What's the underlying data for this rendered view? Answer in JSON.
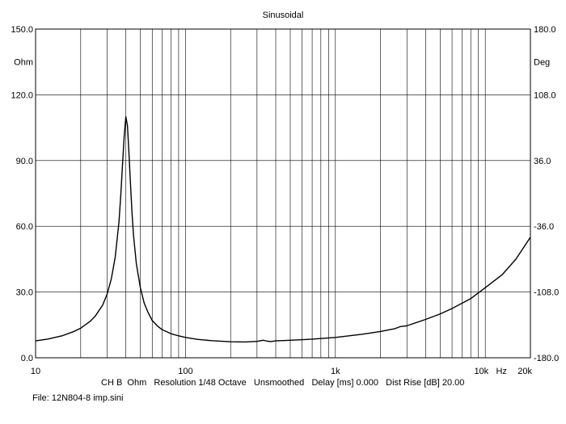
{
  "chart_data": {
    "type": "line",
    "title": "Sinusoidal",
    "x_scale": "log",
    "xlim": [
      10,
      20000
    ],
    "x_tick_labels": [
      "10",
      "100",
      "1k",
      "10k",
      "20k"
    ],
    "x_unit": "Hz",
    "y_left": {
      "unit": "Ohm",
      "ylim": [
        0,
        150
      ],
      "tick_labels": [
        "0.0",
        "30.0",
        "60.0",
        "90.0",
        "120.0",
        "150.0"
      ]
    },
    "y_right": {
      "unit": "Deg",
      "ylim": [
        -180,
        180
      ],
      "tick_labels": [
        "-180.0",
        "-108.0",
        "-36.0",
        "36.0",
        "108.0",
        "180.0"
      ]
    },
    "grid": true,
    "line_color": "#000000",
    "series": [
      {
        "x": [
          10,
          12,
          15,
          18,
          20,
          23,
          25,
          28,
          30,
          32,
          34,
          36,
          37,
          38,
          39,
          40,
          41,
          42,
          43,
          44,
          45,
          47,
          50,
          53,
          56,
          60,
          65,
          70,
          80,
          90,
          100,
          120,
          150,
          200,
          250,
          300,
          330,
          350,
          370,
          400,
          500,
          700,
          1000,
          1500,
          2000,
          2500,
          2700,
          3000,
          4000,
          5000,
          6000,
          8000,
          10000,
          13000,
          16000,
          20000
        ],
        "values": [
          7.7,
          8.5,
          10.0,
          12.0,
          13.5,
          16.5,
          19.0,
          24.0,
          29.0,
          36.0,
          46.0,
          62.0,
          74.0,
          88.0,
          101.0,
          110.0,
          106.0,
          93.0,
          79.0,
          66.0,
          56.0,
          43.0,
          32.0,
          25.0,
          21.0,
          17.0,
          14.5,
          12.8,
          11.0,
          10.0,
          9.3,
          8.4,
          7.8,
          7.3,
          7.2,
          7.5,
          8.0,
          7.6,
          7.4,
          7.7,
          8.0,
          8.5,
          9.3,
          10.7,
          12.0,
          13.3,
          14.2,
          14.6,
          17.5,
          20.0,
          22.5,
          27.0,
          32.0,
          38.0,
          45.0,
          55.0
        ]
      }
    ]
  },
  "footer": {
    "info_line": "CH B  Ohm   Resolution 1/48 Octave   Unsmoothed   Delay [ms] 0.000   Dist Rise [dB] 20.00",
    "file_line": "File: 12N804-8 imp.sini"
  }
}
